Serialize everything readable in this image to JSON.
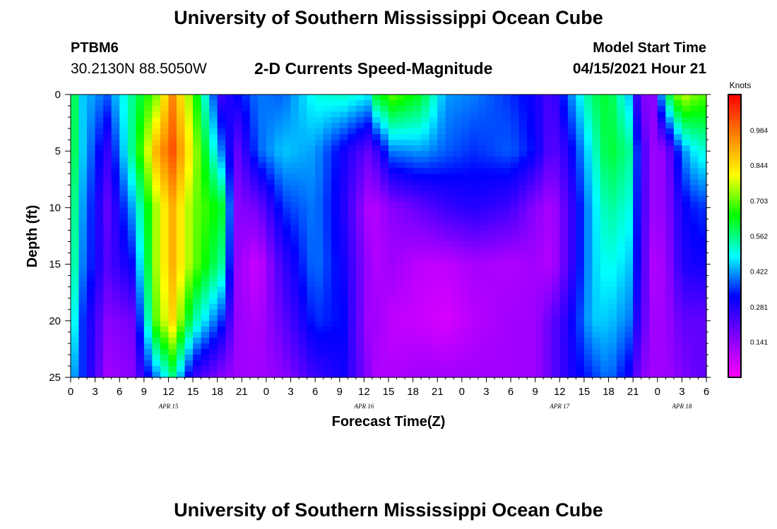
{
  "page": {
    "title_top": "University of Southern Mississippi Ocean Cube",
    "title_bottom": "University of Southern Mississippi Ocean Cube",
    "station_id": "PTBM6",
    "coordinates": "30.2130N  88.5050W",
    "subtitle": "2-D Currents Speed-Magnitude",
    "model_start_label": "Model Start Time",
    "model_start_value": "04/15/2021 Hour 21"
  },
  "chart_data": {
    "type": "heatmap",
    "title": "2-D Currents Speed-Magnitude",
    "xlabel": "Forecast Time(Z)",
    "ylabel": "Depth (ft)",
    "colorbar_label": "Knots",
    "x_tick_labels": [
      "0",
      "3",
      "6",
      "9",
      "12",
      "15",
      "18",
      "21",
      "0",
      "3",
      "6",
      "9",
      "12",
      "15",
      "18",
      "21",
      "0",
      "3",
      "6",
      "9",
      "12",
      "15",
      "18",
      "21",
      "0",
      "3",
      "6"
    ],
    "x_range_hours": [
      0,
      78
    ],
    "date_labels": [
      {
        "text": "APR 15",
        "hour": 12
      },
      {
        "text": "APR 16",
        "hour": 36
      },
      {
        "text": "APR 17",
        "hour": 60
      },
      {
        "text": "APR 18",
        "hour": 75
      }
    ],
    "y_ticks": [
      0,
      5,
      10,
      15,
      20,
      25
    ],
    "ylim": [
      0,
      25
    ],
    "y_inverted": true,
    "colorbar_ticks": [
      0.141,
      0.281,
      0.422,
      0.562,
      0.703,
      0.844,
      0.984
    ],
    "value_range": [
      0.0,
      1.125
    ],
    "colors": {
      "scale": [
        "#ff00ff",
        "#8000ff",
        "#0000ff",
        "#00ffff",
        "#00ff00",
        "#ffff00",
        "#ff8000",
        "#ff0000"
      ]
    },
    "depths": [
      0,
      5,
      10,
      15,
      20,
      25
    ],
    "hours": [
      0,
      1.5,
      4.5,
      7.5,
      10.5,
      12.5,
      15,
      18.5,
      20.5,
      23,
      26,
      30,
      33.5,
      36.5,
      37.5,
      39.5,
      43,
      46,
      49.5,
      54,
      57,
      59,
      61,
      64,
      66,
      68.5,
      70,
      71.5,
      73,
      75,
      77,
      78
    ],
    "speeds": [
      [
        0.65,
        0.45,
        0.38,
        0.55,
        0.72,
        0.95,
        0.7,
        0.25,
        0.32,
        0.4,
        0.38,
        0.5,
        0.52,
        0.48,
        0.62,
        0.7,
        0.62,
        0.42,
        0.4,
        0.35,
        0.3,
        0.22,
        0.38,
        0.58,
        0.62,
        0.45,
        0.15,
        0.15,
        0.55,
        0.78,
        0.7,
        0.7
      ],
      [
        0.65,
        0.45,
        0.26,
        0.55,
        0.9,
        1.02,
        0.78,
        0.4,
        0.2,
        0.38,
        0.45,
        0.42,
        0.3,
        0.2,
        0.25,
        0.4,
        0.42,
        0.38,
        0.35,
        0.38,
        0.32,
        0.2,
        0.28,
        0.5,
        0.62,
        0.55,
        0.25,
        0.13,
        0.14,
        0.4,
        0.5,
        0.5
      ],
      [
        0.62,
        0.42,
        0.2,
        0.42,
        0.75,
        0.9,
        0.72,
        0.62,
        0.15,
        0.18,
        0.35,
        0.4,
        0.28,
        0.1,
        0.1,
        0.15,
        0.2,
        0.25,
        0.28,
        0.24,
        0.15,
        0.1,
        0.22,
        0.45,
        0.55,
        0.5,
        0.25,
        0.13,
        0.14,
        0.3,
        0.35,
        0.35
      ],
      [
        0.6,
        0.4,
        0.22,
        0.32,
        0.75,
        0.9,
        0.72,
        0.55,
        0.13,
        0.06,
        0.25,
        0.4,
        0.3,
        0.13,
        0.1,
        0.12,
        0.08,
        0.08,
        0.11,
        0.1,
        0.12,
        0.09,
        0.22,
        0.45,
        0.5,
        0.45,
        0.25,
        0.1,
        0.12,
        0.28,
        0.3,
        0.3
      ],
      [
        0.55,
        0.35,
        0.15,
        0.18,
        0.7,
        0.85,
        0.55,
        0.35,
        0.13,
        0.1,
        0.2,
        0.35,
        0.32,
        0.12,
        0.12,
        0.08,
        0.07,
        0.05,
        0.09,
        0.12,
        0.12,
        0.2,
        0.28,
        0.45,
        0.45,
        0.4,
        0.22,
        0.12,
        0.12,
        0.2,
        0.2,
        0.2
      ],
      [
        0.45,
        0.35,
        0.12,
        0.15,
        0.4,
        0.55,
        0.25,
        0.15,
        0.12,
        0.12,
        0.14,
        0.25,
        0.3,
        0.15,
        0.1,
        0.1,
        0.12,
        0.12,
        0.12,
        0.12,
        0.12,
        0.2,
        0.28,
        0.35,
        0.4,
        0.3,
        0.15,
        0.12,
        0.12,
        0.16,
        0.2,
        0.2
      ]
    ]
  }
}
